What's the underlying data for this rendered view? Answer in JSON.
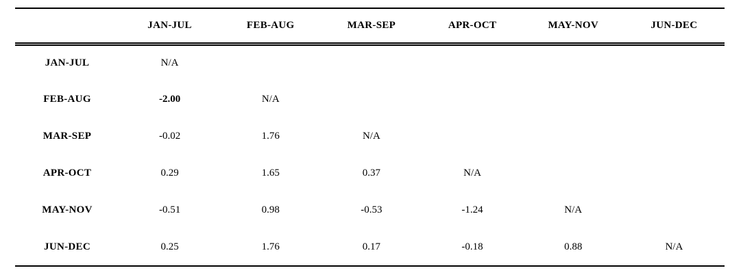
{
  "table": {
    "header": {
      "corner": "",
      "columns": [
        "JAN-JUL",
        "FEB-AUG",
        "MAR-SEP",
        "APR-OCT",
        "MAY-NOV",
        "JUN-DEC"
      ]
    },
    "rows": [
      {
        "label": "JAN-JUL",
        "cells": [
          "N/A",
          "",
          "",
          "",
          "",
          ""
        ]
      },
      {
        "label": "FEB-AUG",
        "cells": [
          "-2.00",
          "N/A",
          "",
          "",
          "",
          ""
        ]
      },
      {
        "label": "MAR-SEP",
        "cells": [
          "-0.02",
          "1.76",
          "N/A",
          "",
          "",
          ""
        ]
      },
      {
        "label": "APR-OCT",
        "cells": [
          "0.29",
          "1.65",
          "0.37",
          "N/A",
          "",
          ""
        ]
      },
      {
        "label": "MAY-NOV",
        "cells": [
          "-0.51",
          "0.98",
          "-0.53",
          "-1.24",
          "N/A",
          ""
        ]
      },
      {
        "label": "JUN-DEC",
        "cells": [
          "0.25",
          "1.76",
          "0.17",
          "-0.18",
          "0.88",
          "N/A"
        ]
      }
    ],
    "na_text": "N/A",
    "text_color": "#000000",
    "background_color": "#ffffff"
  }
}
